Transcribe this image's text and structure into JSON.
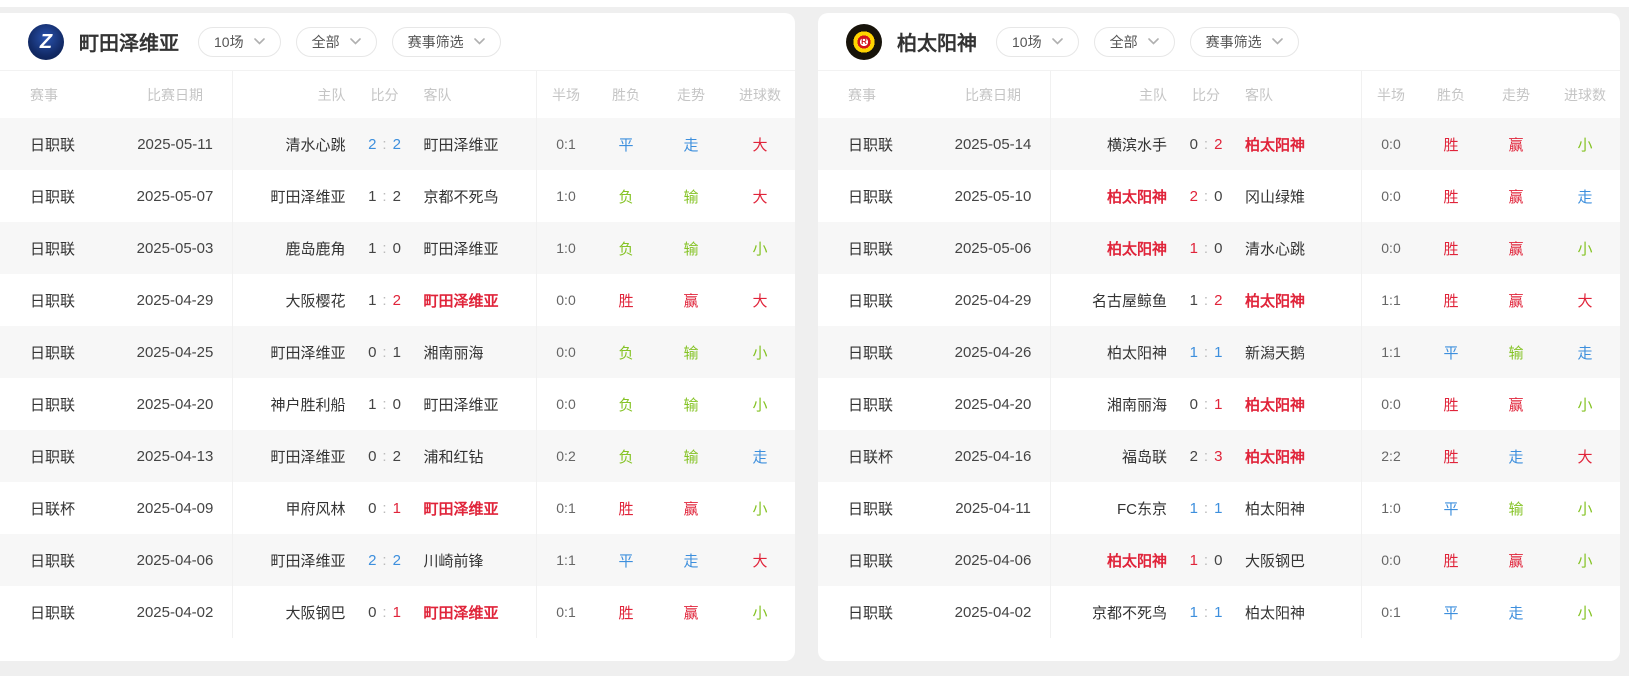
{
  "colors": {
    "win_red": "#e0243a",
    "draw_blue": "#3d8fdd",
    "loss_green": "#85c325"
  },
  "filters": {
    "count": "10场",
    "venue": "全部",
    "competition": "赛事筛选"
  },
  "table_headers": [
    "赛事",
    "比赛日期",
    "主队",
    "比分",
    "客队",
    "半场",
    "胜负",
    "走势",
    "进球数"
  ],
  "panels": [
    {
      "team": "町田泽维亚",
      "logo_letter": "Z",
      "rows": [
        {
          "comp": "日职联",
          "date": "2025-05-11",
          "home": "清水心跳",
          "hs": "2",
          "as": "2",
          "away": "町田泽维亚",
          "half": "0:1",
          "mark": "draw",
          "wdl": [
            "平",
            "blue"
          ],
          "trend": [
            "走",
            "blue"
          ],
          "goals": [
            "大",
            "red"
          ]
        },
        {
          "comp": "日职联",
          "date": "2025-05-07",
          "home": "町田泽维亚",
          "hs": "1",
          "as": "2",
          "away": "京都不死鸟",
          "half": "1:0",
          "mark": "none",
          "wdl": [
            "负",
            "green"
          ],
          "trend": [
            "输",
            "green"
          ],
          "goals": [
            "大",
            "red"
          ]
        },
        {
          "comp": "日职联",
          "date": "2025-05-03",
          "home": "鹿岛鹿角",
          "hs": "1",
          "as": "0",
          "away": "町田泽维亚",
          "half": "1:0",
          "mark": "none",
          "wdl": [
            "负",
            "green"
          ],
          "trend": [
            "输",
            "green"
          ],
          "goals": [
            "小",
            "green"
          ]
        },
        {
          "comp": "日职联",
          "date": "2025-04-29",
          "home": "大阪樱花",
          "hs": "1",
          "as": "2",
          "away": "町田泽维亚",
          "half": "0:0",
          "mark": "away",
          "wdl": [
            "胜",
            "red"
          ],
          "trend": [
            "赢",
            "red"
          ],
          "goals": [
            "大",
            "red"
          ]
        },
        {
          "comp": "日职联",
          "date": "2025-04-25",
          "home": "町田泽维亚",
          "hs": "0",
          "as": "1",
          "away": "湘南丽海",
          "half": "0:0",
          "mark": "none",
          "wdl": [
            "负",
            "green"
          ],
          "trend": [
            "输",
            "green"
          ],
          "goals": [
            "小",
            "green"
          ]
        },
        {
          "comp": "日职联",
          "date": "2025-04-20",
          "home": "神户胜利船",
          "hs": "1",
          "as": "0",
          "away": "町田泽维亚",
          "half": "0:0",
          "mark": "none",
          "wdl": [
            "负",
            "green"
          ],
          "trend": [
            "输",
            "green"
          ],
          "goals": [
            "小",
            "green"
          ]
        },
        {
          "comp": "日职联",
          "date": "2025-04-13",
          "home": "町田泽维亚",
          "hs": "0",
          "as": "2",
          "away": "浦和红钻",
          "half": "0:2",
          "mark": "none",
          "wdl": [
            "负",
            "green"
          ],
          "trend": [
            "输",
            "green"
          ],
          "goals": [
            "走",
            "blue"
          ]
        },
        {
          "comp": "日联杯",
          "date": "2025-04-09",
          "home": "甲府风林",
          "hs": "0",
          "as": "1",
          "away": "町田泽维亚",
          "half": "0:1",
          "mark": "away",
          "wdl": [
            "胜",
            "red"
          ],
          "trend": [
            "赢",
            "red"
          ],
          "goals": [
            "小",
            "green"
          ]
        },
        {
          "comp": "日职联",
          "date": "2025-04-06",
          "home": "町田泽维亚",
          "hs": "2",
          "as": "2",
          "away": "川崎前锋",
          "half": "1:1",
          "mark": "draw",
          "wdl": [
            "平",
            "blue"
          ],
          "trend": [
            "走",
            "blue"
          ],
          "goals": [
            "大",
            "red"
          ]
        },
        {
          "comp": "日职联",
          "date": "2025-04-02",
          "home": "大阪钢巴",
          "hs": "0",
          "as": "1",
          "away": "町田泽维亚",
          "half": "0:1",
          "mark": "away",
          "wdl": [
            "胜",
            "red"
          ],
          "trend": [
            "赢",
            "red"
          ],
          "goals": [
            "小",
            "green"
          ]
        }
      ]
    },
    {
      "team": "柏太阳神",
      "logo_letter": "R",
      "rows": [
        {
          "comp": "日职联",
          "date": "2025-05-14",
          "home": "横滨水手",
          "hs": "0",
          "as": "2",
          "away": "柏太阳神",
          "half": "0:0",
          "mark": "away",
          "wdl": [
            "胜",
            "red"
          ],
          "trend": [
            "赢",
            "red"
          ],
          "goals": [
            "小",
            "green"
          ]
        },
        {
          "comp": "日职联",
          "date": "2025-05-10",
          "home": "柏太阳神",
          "hs": "2",
          "as": "0",
          "away": "冈山绿雉",
          "half": "0:0",
          "mark": "home",
          "wdl": [
            "胜",
            "red"
          ],
          "trend": [
            "赢",
            "red"
          ],
          "goals": [
            "走",
            "blue"
          ]
        },
        {
          "comp": "日职联",
          "date": "2025-05-06",
          "home": "柏太阳神",
          "hs": "1",
          "as": "0",
          "away": "清水心跳",
          "half": "0:0",
          "mark": "home",
          "wdl": [
            "胜",
            "red"
          ],
          "trend": [
            "赢",
            "red"
          ],
          "goals": [
            "小",
            "green"
          ]
        },
        {
          "comp": "日职联",
          "date": "2025-04-29",
          "home": "名古屋鲸鱼",
          "hs": "1",
          "as": "2",
          "away": "柏太阳神",
          "half": "1:1",
          "mark": "away",
          "wdl": [
            "胜",
            "red"
          ],
          "trend": [
            "赢",
            "red"
          ],
          "goals": [
            "大",
            "red"
          ]
        },
        {
          "comp": "日职联",
          "date": "2025-04-26",
          "home": "柏太阳神",
          "hs": "1",
          "as": "1",
          "away": "新潟天鹅",
          "half": "1:1",
          "mark": "draw",
          "wdl": [
            "平",
            "blue"
          ],
          "trend": [
            "输",
            "green"
          ],
          "goals": [
            "走",
            "blue"
          ]
        },
        {
          "comp": "日职联",
          "date": "2025-04-20",
          "home": "湘南丽海",
          "hs": "0",
          "as": "1",
          "away": "柏太阳神",
          "half": "0:0",
          "mark": "away",
          "wdl": [
            "胜",
            "red"
          ],
          "trend": [
            "赢",
            "red"
          ],
          "goals": [
            "小",
            "green"
          ]
        },
        {
          "comp": "日联杯",
          "date": "2025-04-16",
          "home": "福岛联",
          "hs": "2",
          "as": "3",
          "away": "柏太阳神",
          "half": "2:2",
          "mark": "away",
          "wdl": [
            "胜",
            "red"
          ],
          "trend": [
            "走",
            "blue"
          ],
          "goals": [
            "大",
            "red"
          ]
        },
        {
          "comp": "日职联",
          "date": "2025-04-11",
          "home": "FC东京",
          "hs": "1",
          "as": "1",
          "away": "柏太阳神",
          "half": "1:0",
          "mark": "draw",
          "wdl": [
            "平",
            "blue"
          ],
          "trend": [
            "输",
            "green"
          ],
          "goals": [
            "小",
            "green"
          ]
        },
        {
          "comp": "日职联",
          "date": "2025-04-06",
          "home": "柏太阳神",
          "hs": "1",
          "as": "0",
          "away": "大阪钢巴",
          "half": "0:0",
          "mark": "home",
          "wdl": [
            "胜",
            "red"
          ],
          "trend": [
            "赢",
            "red"
          ],
          "goals": [
            "小",
            "green"
          ]
        },
        {
          "comp": "日职联",
          "date": "2025-04-02",
          "home": "京都不死鸟",
          "hs": "1",
          "as": "1",
          "away": "柏太阳神",
          "half": "0:1",
          "mark": "draw",
          "wdl": [
            "平",
            "blue"
          ],
          "trend": [
            "走",
            "blue"
          ],
          "goals": [
            "小",
            "green"
          ]
        }
      ]
    }
  ]
}
